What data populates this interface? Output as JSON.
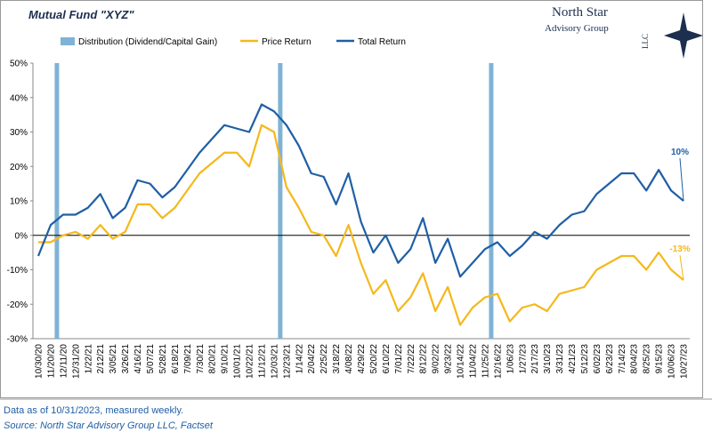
{
  "title": "Mutual Fund \"XYZ\"",
  "logo": {
    "name": "North Star",
    "line2": "Advisory Group",
    "line3": "LLC"
  },
  "footer": {
    "note": "Data as of 10/31/2023, measured weekly.",
    "source": "Source: North Star Advisory Group LLC, Factset"
  },
  "chart_data": {
    "type": "line",
    "categories": [
      "10/30/20",
      "11/20/20",
      "12/11/20",
      "12/31/20",
      "1/22/21",
      "2/12/21",
      "3/05/21",
      "3/26/21",
      "4/16/21",
      "5/07/21",
      "5/28/21",
      "6/18/21",
      "7/09/21",
      "7/30/21",
      "8/20/21",
      "9/10/21",
      "10/01/21",
      "10/22/21",
      "11/12/21",
      "12/03/21",
      "12/23/21",
      "1/14/22",
      "2/04/22",
      "2/25/22",
      "3/18/22",
      "4/08/22",
      "4/29/22",
      "5/20/22",
      "6/10/22",
      "7/01/22",
      "7/22/22",
      "8/12/22",
      "9/02/22",
      "9/23/22",
      "10/14/22",
      "11/04/22",
      "11/25/22",
      "12/16/22",
      "1/06/23",
      "1/27/23",
      "2/17/23",
      "3/10/23",
      "3/31/23",
      "4/21/23",
      "5/12/23",
      "6/02/23",
      "6/23/23",
      "7/14/23",
      "8/04/23",
      "8/25/23",
      "9/15/23",
      "10/06/23",
      "10/27/23"
    ],
    "distribution": {
      "name": "Distribution (Dividend/Capital Gain)",
      "color": "#7fb3d5",
      "values": [
        null,
        true,
        null,
        null,
        null,
        null,
        null,
        null,
        null,
        null,
        null,
        null,
        null,
        null,
        null,
        null,
        null,
        null,
        null,
        true,
        null,
        null,
        null,
        null,
        null,
        null,
        null,
        null,
        null,
        null,
        null,
        null,
        null,
        null,
        null,
        null,
        true,
        null,
        null,
        null,
        null,
        null,
        null,
        null,
        null,
        null,
        null,
        null,
        null,
        null,
        null,
        null,
        null
      ]
    },
    "series": [
      {
        "name": "Price Return",
        "color": "#f5b81c",
        "values": [
          -2,
          -2,
          0,
          1,
          -1,
          3,
          -1,
          1,
          9,
          9,
          5,
          8,
          13,
          18,
          21,
          24,
          24,
          20,
          32,
          30,
          14,
          8,
          1,
          0,
          -6,
          3,
          -8,
          -17,
          -13,
          -22,
          -18,
          -11,
          -22,
          -15,
          -26,
          -21,
          -18,
          -17,
          -25,
          -21,
          -20,
          -22,
          -17,
          -16,
          -15,
          -10,
          -8,
          -6,
          -6,
          -10,
          -5,
          -10,
          -13
        ],
        "value_labels": [
          null,
          null,
          null,
          null,
          null,
          null,
          null,
          null,
          null,
          null,
          null,
          null,
          null,
          null,
          null,
          null,
          null,
          null,
          null,
          null,
          null,
          null,
          null,
          null,
          null,
          null,
          null,
          null,
          null,
          null,
          null,
          null,
          null,
          null,
          null,
          null,
          null,
          null,
          null,
          null,
          null,
          null,
          null,
          null,
          null,
          null,
          null,
          null,
          null,
          null,
          null,
          null,
          "-13%"
        ]
      },
      {
        "name": "Total Return",
        "color": "#1f5fa6",
        "values": [
          -6,
          3,
          6,
          6,
          8,
          12,
          5,
          8,
          16,
          15,
          11,
          14,
          19,
          24,
          28,
          32,
          31,
          30,
          38,
          36,
          32,
          26,
          18,
          17,
          9,
          18,
          4,
          -5,
          0,
          -8,
          -4,
          5,
          -8,
          -1,
          -12,
          -8,
          -4,
          -2,
          -6,
          -3,
          1,
          -1,
          3,
          6,
          7,
          12,
          15,
          18,
          18,
          13,
          19,
          13,
          10
        ],
        "value_labels": [
          null,
          null,
          null,
          null,
          null,
          null,
          null,
          null,
          null,
          null,
          null,
          null,
          null,
          null,
          null,
          null,
          null,
          null,
          null,
          null,
          null,
          null,
          null,
          null,
          null,
          null,
          null,
          null,
          null,
          null,
          null,
          null,
          null,
          null,
          null,
          null,
          null,
          null,
          null,
          null,
          null,
          null,
          null,
          null,
          null,
          null,
          null,
          null,
          null,
          null,
          null,
          null,
          "10%"
        ]
      }
    ],
    "ylim": [
      -30,
      50
    ],
    "yticks": [
      {
        "value": -30,
        "label": "-30%"
      },
      {
        "value": -20,
        "label": "-20%"
      },
      {
        "value": -10,
        "label": "-10%"
      },
      {
        "value": 0,
        "label": "0%"
      },
      {
        "value": 10,
        "label": "10%"
      },
      {
        "value": 20,
        "label": "20%"
      },
      {
        "value": 30,
        "label": "30%"
      },
      {
        "value": 40,
        "label": "40%"
      },
      {
        "value": 50,
        "label": "50%"
      }
    ],
    "zero_line": true
  }
}
